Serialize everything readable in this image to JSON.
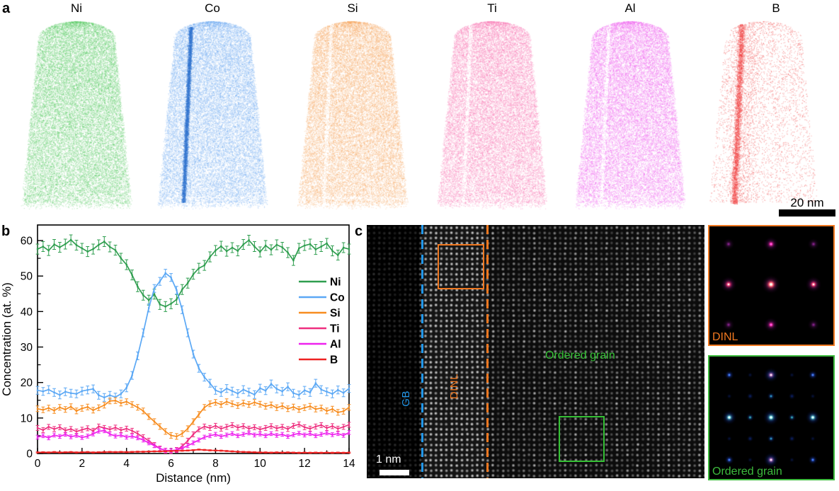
{
  "figure": {
    "panel_a_letter": "a",
    "panel_b_letter": "b",
    "panel_c_letter": "c"
  },
  "panel_a": {
    "elements": [
      {
        "symbol": "Ni",
        "color": "#50c85c",
        "streak": "none"
      },
      {
        "symbol": "Co",
        "color": "#6ea9f0",
        "streak": "dark",
        "streak_color": "#2f74d0"
      },
      {
        "symbol": "Si",
        "color": "#f6a55c",
        "streak": "light"
      },
      {
        "symbol": "Ti",
        "color": "#f873b0",
        "streak": "light"
      },
      {
        "symbol": "Al",
        "color": "#ee5fee",
        "streak": "light"
      },
      {
        "symbol": "B",
        "color": "#f04545",
        "streak": "band"
      }
    ],
    "scale_bar_label": "20 nm"
  },
  "chart_data": {
    "type": "line",
    "title": "",
    "xlabel": "Distance (nm)",
    "ylabel": "Concentration (at. %)",
    "xlim": [
      0,
      14
    ],
    "ylim": [
      0,
      64
    ],
    "xticks": [
      0,
      2,
      4,
      6,
      8,
      10,
      12,
      14
    ],
    "yticks": [
      0,
      10,
      20,
      30,
      40,
      50,
      60
    ],
    "grid": false,
    "legend_position": "right-inside",
    "x": [
      0,
      0.25,
      0.5,
      0.75,
      1,
      1.25,
      1.5,
      1.75,
      2,
      2.25,
      2.5,
      2.75,
      3,
      3.25,
      3.5,
      3.75,
      4,
      4.25,
      4.5,
      4.75,
      5,
      5.25,
      5.5,
      5.75,
      6,
      6.25,
      6.5,
      6.75,
      7,
      7.25,
      7.5,
      7.75,
      8,
      8.25,
      8.5,
      8.75,
      9,
      9.25,
      9.5,
      9.75,
      10,
      10.25,
      10.5,
      10.75,
      11,
      11.25,
      11.5,
      11.75,
      12,
      12.25,
      12.5,
      12.75,
      13,
      13.25,
      13.5,
      13.75,
      14
    ],
    "series": [
      {
        "name": "Ni",
        "color": "#2f9e4f",
        "err": 1.4,
        "values": [
          57.6,
          58.3,
          57.2,
          58.9,
          58.1,
          59.0,
          60.2,
          58.7,
          57.8,
          56.9,
          57.6,
          58.8,
          59.7,
          58.2,
          57.3,
          55.0,
          53.2,
          50.3,
          47.0,
          44.6,
          43.2,
          44.9,
          42.0,
          41.4,
          42.2,
          43.4,
          46.2,
          48.0,
          50.5,
          52.2,
          53.0,
          55.4,
          57.2,
          58.4,
          57.0,
          58.0,
          57.1,
          58.9,
          60.1,
          58.3,
          56.8,
          58.6,
          57.4,
          58.8,
          58.1,
          56.6,
          54.4,
          57.8,
          58.6,
          59.0,
          57.5,
          58.3,
          59.2,
          57.1,
          55.9,
          58.0,
          57.6
        ]
      },
      {
        "name": "Co",
        "color": "#5ba8f5",
        "err": 1.1,
        "values": [
          17.8,
          17.5,
          18.0,
          17.2,
          16.5,
          17.4,
          17.0,
          16.8,
          17.6,
          17.9,
          18.2,
          16.4,
          15.8,
          16.4,
          15.9,
          16.8,
          18.5,
          22.0,
          27.5,
          34.0,
          41.0,
          46.5,
          48.5,
          50.8,
          49.6,
          46.0,
          40.5,
          34.0,
          28.0,
          24.0,
          21.5,
          19.8,
          17.8,
          17.2,
          18.3,
          17.6,
          16.9,
          18.0,
          17.3,
          16.6,
          18.4,
          17.7,
          19.6,
          18.2,
          17.5,
          18.8,
          17.0,
          16.5,
          17.8,
          17.2,
          19.8,
          18.0,
          17.4,
          16.8,
          17.9,
          17.1,
          18.3
        ]
      },
      {
        "name": "Si",
        "color": "#f78d20",
        "err": 0.8,
        "values": [
          12.6,
          12.3,
          12.8,
          12.1,
          13.0,
          12.4,
          13.2,
          12.0,
          12.7,
          13.1,
          12.2,
          12.9,
          13.6,
          14.8,
          14.9,
          14.2,
          14.6,
          13.8,
          13.0,
          12.0,
          10.4,
          9.0,
          7.6,
          6.2,
          5.1,
          4.8,
          5.6,
          7.0,
          9.0,
          11.0,
          13.0,
          14.0,
          14.4,
          13.8,
          14.6,
          14.0,
          13.5,
          14.2,
          13.8,
          14.4,
          13.9,
          13.3,
          13.7,
          12.9,
          13.4,
          12.6,
          13.1,
          12.4,
          12.9,
          13.3,
          12.5,
          12.8,
          12.0,
          12.5,
          11.6,
          11.9,
          13.0
        ]
      },
      {
        "name": "Ti",
        "color": "#ee2f7f",
        "err": 0.7,
        "values": [
          7.2,
          6.6,
          7.5,
          6.9,
          7.4,
          6.5,
          6.9,
          6.2,
          6.7,
          7.1,
          6.4,
          7.6,
          7.2,
          6.8,
          7.3,
          6.6,
          7.0,
          6.4,
          5.6,
          4.6,
          3.6,
          2.4,
          1.4,
          0.8,
          0.7,
          1.0,
          2.0,
          3.6,
          5.4,
          6.8,
          7.6,
          7.2,
          7.8,
          7.0,
          7.5,
          8.0,
          7.3,
          7.7,
          7.0,
          7.4,
          6.8,
          7.2,
          7.7,
          7.1,
          7.5,
          6.9,
          7.8,
          8.2,
          7.4,
          7.0,
          7.6,
          8.0,
          7.2,
          7.7,
          7.0,
          7.5,
          8.1
        ]
      },
      {
        "name": "Al",
        "color": "#ee22ee",
        "err": 0.55,
        "values": [
          4.6,
          5.0,
          4.4,
          5.2,
          4.8,
          5.4,
          4.7,
          5.1,
          4.5,
          4.9,
          5.5,
          6.3,
          6.4,
          5.5,
          4.9,
          5.2,
          4.6,
          4.9,
          4.4,
          3.8,
          3.0,
          2.2,
          1.4,
          0.9,
          0.8,
          1.0,
          1.5,
          2.2,
          3.0,
          3.8,
          4.6,
          5.0,
          5.4,
          4.8,
          5.2,
          5.6,
          5.0,
          5.4,
          5.8,
          5.2,
          5.5,
          5.0,
          5.6,
          5.1,
          5.4,
          4.8,
          5.3,
          5.7,
          5.2,
          5.6,
          5.0,
          5.4,
          5.8,
          5.3,
          5.6,
          5.1,
          5.9
        ]
      },
      {
        "name": "B",
        "color": "#ee2222",
        "err": 0.15,
        "values": [
          0.3,
          0.35,
          0.3,
          0.4,
          0.3,
          0.35,
          0.4,
          0.3,
          0.35,
          0.4,
          0.3,
          0.35,
          0.4,
          0.45,
          0.4,
          0.45,
          0.4,
          0.45,
          0.5,
          0.5,
          0.55,
          0.6,
          0.6,
          0.65,
          0.7,
          0.75,
          0.8,
          0.85,
          0.95,
          1.1,
          1.0,
          0.9,
          0.85,
          0.8,
          0.7,
          0.6,
          0.5,
          0.45,
          0.4,
          0.35,
          0.3,
          0.3,
          0.25,
          0.3,
          0.25,
          0.3,
          0.25,
          0.2,
          0.25,
          0.2,
          0.25,
          0.2,
          0.25,
          0.2,
          0.25,
          0.2,
          0.25
        ]
      }
    ]
  },
  "panel_c": {
    "gb_label": "GB",
    "gb_color": "#2196e8",
    "dinl_label": "DINL",
    "dinl_color": "#f07820",
    "ordered_grain_label": "Ordered grain",
    "grain_color": "#35c135",
    "scale_bar_label": "1 nm",
    "insets": [
      {
        "label": "DINL",
        "border_color": "#f07820"
      },
      {
        "label": "Ordered grain",
        "border_color": "#3dbb3d"
      }
    ]
  }
}
